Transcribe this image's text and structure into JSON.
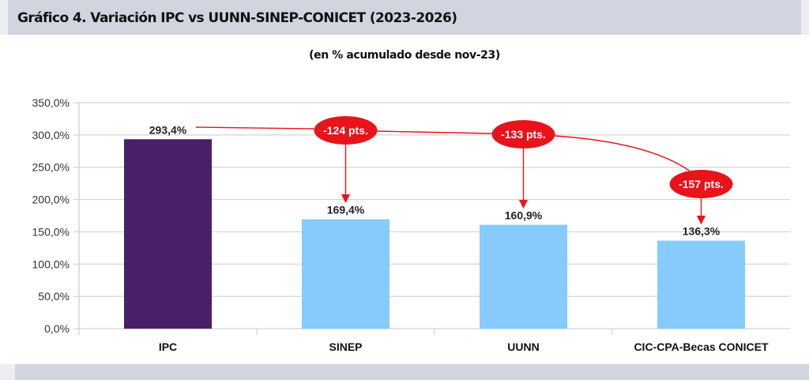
{
  "header": {
    "title": "Gráfico 4. Variación IPC vs UUNN-SINEP-CONICET (2023-2026)"
  },
  "chart_data": {
    "type": "bar",
    "subtitle": "(en % acumulado desde nov-23)",
    "categories": [
      "IPC",
      "SINEP",
      "UUNN",
      "CIC-CPA-Becas CONICET"
    ],
    "values": [
      293.4,
      169.4,
      160.9,
      136.3
    ],
    "data_labels": [
      "293,4%",
      "169,4%",
      "160,9%",
      "136,3%"
    ],
    "colors": [
      "#4a1f6a",
      "#87cafc",
      "#87cafc",
      "#87cafc"
    ],
    "ylim": [
      0,
      350
    ],
    "yticks": [
      0,
      50,
      100,
      150,
      200,
      250,
      300,
      350
    ],
    "ytick_labels": [
      "0,0%",
      "50,0%",
      "100,0%",
      "150,0%",
      "200,0%",
      "250,0%",
      "300,0%",
      "350,0%"
    ],
    "grid": true,
    "annotations": [
      {
        "label": "-124 pts.",
        "target": "SINEP"
      },
      {
        "label": "-133 pts.",
        "target": "UUNN"
      },
      {
        "label": "-157 pts.",
        "target": "CIC-CPA-Becas CONICET"
      }
    ],
    "annotation_color": "#e8141b"
  }
}
